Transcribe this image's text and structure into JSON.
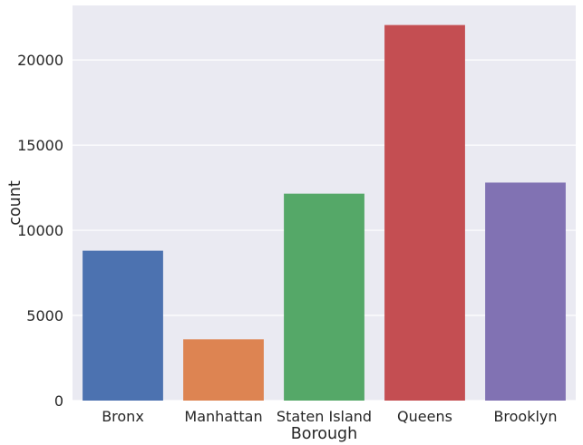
{
  "chart_data": {
    "type": "bar",
    "title": "",
    "xlabel": "Borough",
    "ylabel": "count",
    "categories": [
      "Bronx",
      "Manhattan",
      "Staten Island",
      "Queens",
      "Brooklyn"
    ],
    "values": [
      8800,
      3600,
      12150,
      22050,
      12800
    ],
    "colors": [
      "#4c72b0",
      "#dd8452",
      "#55a868",
      "#c44e52",
      "#8172b3"
    ],
    "ylim": [
      0,
      23200
    ],
    "yticks": [
      0,
      5000,
      10000,
      15000,
      20000
    ],
    "ytick_labels": [
      "0",
      "5000",
      "10000",
      "15000",
      "20000"
    ],
    "grid": true,
    "background_color": "#eaeaf2",
    "grid_color": "#ffffff"
  }
}
